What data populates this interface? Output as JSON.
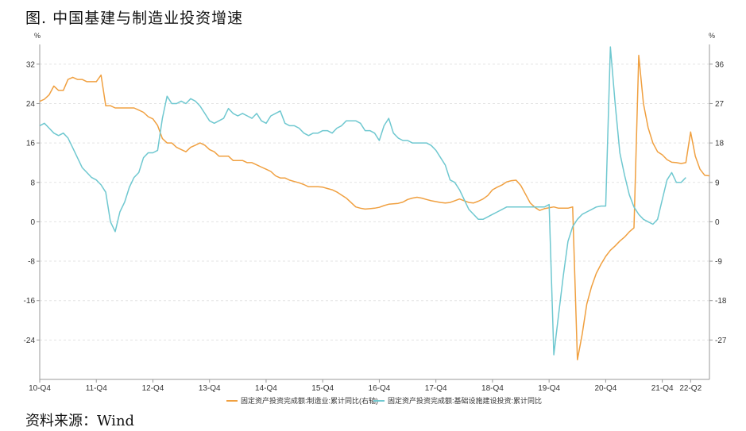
{
  "title": "图. 中国基建与制造业投资增速",
  "source": "资料来源：Wind",
  "chart_data": {
    "type": "line",
    "left_unit": "%",
    "right_unit": "%",
    "left_ylim": [
      -32,
      36
    ],
    "right_ylim": [
      -36,
      40.5
    ],
    "left_ticks": [
      32,
      24,
      16,
      8,
      0,
      -8,
      -16,
      -24
    ],
    "right_ticks": [
      36,
      27,
      18,
      9,
      0,
      -9,
      -18,
      -27
    ],
    "x_tick_labels": [
      "10-Q4",
      "11-Q4",
      "12-Q4",
      "13-Q4",
      "14-Q4",
      "15-Q4",
      "16-Q4",
      "17-Q4",
      "18-Q4",
      "19-Q4",
      "20-Q4",
      "21-Q4",
      "22-Q2"
    ],
    "x_tick_index": [
      0,
      12,
      24,
      36,
      48,
      60,
      72,
      84,
      96,
      108,
      120,
      132,
      138
    ],
    "series": [
      {
        "name": "固定资产投资完成额:制造业:累计同比(右轴)",
        "axis": "right",
        "color": "#f0a040",
        "values": [
          27.5,
          28,
          29,
          31,
          30,
          30,
          32.5,
          33,
          32.5,
          32.5,
          32,
          32,
          32,
          33.5,
          26.5,
          26.5,
          26,
          26,
          26,
          26,
          26,
          25.5,
          25,
          24,
          23.5,
          22,
          19,
          18,
          18,
          17,
          16.5,
          16,
          17,
          17.5,
          18,
          17.5,
          16.5,
          16,
          15,
          15,
          15,
          14,
          14,
          14,
          13.5,
          13.5,
          13,
          12.5,
          12,
          11.5,
          10.5,
          10,
          10,
          9.5,
          9.2,
          8.9,
          8.5,
          8,
          8,
          8,
          7.9,
          7.6,
          7.3,
          6.8,
          6.1,
          5.4,
          4.4,
          3.4,
          3.1,
          2.9,
          3,
          3.1,
          3.3,
          3.7,
          4,
          4.1,
          4.2,
          4.5,
          5.1,
          5.4,
          5.6,
          5.4,
          5.1,
          4.8,
          4.6,
          4.4,
          4.3,
          4.4,
          4.8,
          5.2,
          4.8,
          4.4,
          4.3,
          4.7,
          5.2,
          6.0,
          7.3,
          7.9,
          8.4,
          9.1,
          9.4,
          9.5,
          8.3,
          6.3,
          4.3,
          3.3,
          2.6,
          3,
          3.2,
          3.4,
          3.1,
          3.1,
          3.1,
          3.4,
          -31.5,
          -25.8,
          -18.8,
          -14.8,
          -11.8,
          -9.7,
          -7.9,
          -6.5,
          -5.5,
          -4.4,
          -3.5,
          -2.3,
          -1.4,
          38.0,
          27.0,
          21.5,
          18.0,
          16.0,
          15.3,
          14.2,
          13.6,
          13.5,
          13.3,
          13.5,
          20.5,
          15.0,
          12.0,
          10.6,
          10.5
        ]
      },
      {
        "name": "固定资产投资完成额:基础设施建设投资:累计同比",
        "axis": "left",
        "color": "#6fc8d0",
        "values": [
          19.5,
          20,
          19,
          18,
          17.5,
          18,
          17,
          15,
          13,
          11,
          10,
          9,
          8.5,
          7.5,
          6,
          0,
          -2,
          2,
          4,
          7,
          9,
          10,
          13,
          14,
          14,
          14.5,
          21,
          25.5,
          24,
          24,
          24.5,
          24,
          25,
          24.5,
          23.5,
          22,
          20.5,
          20,
          20.5,
          21,
          23,
          22,
          21.5,
          22,
          21.5,
          21,
          22,
          20.5,
          20,
          21.5,
          22,
          22.5,
          20,
          19.5,
          19.5,
          19,
          18,
          17.5,
          18,
          18,
          18.5,
          18.5,
          18,
          19,
          19.5,
          20.5,
          20.5,
          20.5,
          20,
          18.5,
          18.5,
          18,
          16.5,
          19.5,
          21,
          18,
          17,
          16.5,
          16.5,
          16,
          16,
          16,
          16,
          15.5,
          14.5,
          13,
          11.5,
          8.5,
          8,
          6.5,
          4.5,
          2.5,
          1.5,
          0.5,
          0.5,
          1,
          1.5,
          2,
          2.5,
          3,
          3,
          3,
          3,
          3,
          3,
          3,
          3,
          3,
          3.5,
          -27,
          -19,
          -11,
          -4,
          -1,
          0.5,
          1.5,
          2,
          2.5,
          3,
          3.2,
          3.2,
          35.5,
          24,
          14,
          9.5,
          5.5,
          3,
          1.5,
          0.5,
          0,
          -0.5,
          0.5,
          4.5,
          8.5,
          10,
          8,
          8,
          9
        ]
      }
    ],
    "grid": true,
    "legend_position": "bottom"
  }
}
